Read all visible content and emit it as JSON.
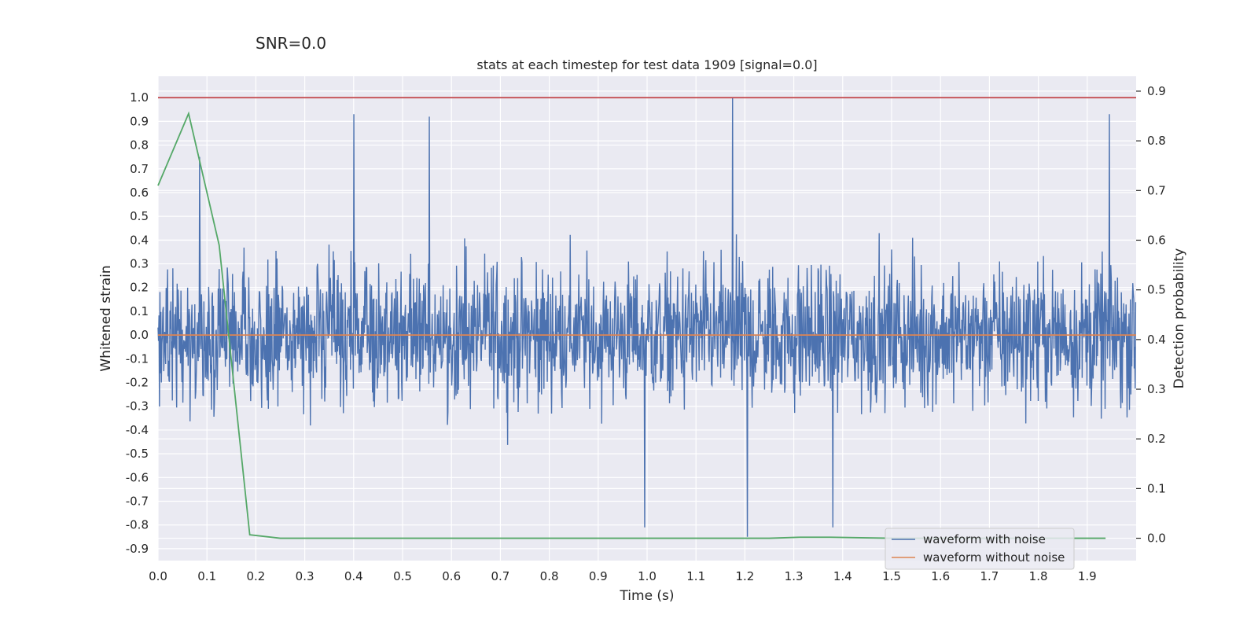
{
  "figure": {
    "suptitle": "SNR=0.0",
    "title": "stats at each timestep for test data 1909 [signal=0.0]"
  },
  "chart_data": {
    "type": "line",
    "title": "stats at each timestep for test data 1909 [signal=0.0]",
    "xlabel": "Time (s)",
    "ylabel": "Whitened strain",
    "y2label": "Detection probability",
    "xlim": [
      0.0,
      2.0
    ],
    "ylim": [
      -0.95,
      1.09
    ],
    "y2lim": [
      -0.045,
      0.93
    ],
    "xticks": [
      "0.0",
      "0.1",
      "0.2",
      "0.3",
      "0.4",
      "0.5",
      "0.6",
      "0.7",
      "0.8",
      "0.9",
      "1.0",
      "1.1",
      "1.2",
      "1.3",
      "1.4",
      "1.5",
      "1.6",
      "1.7",
      "1.8",
      "1.9"
    ],
    "yticks": [
      "1.0",
      "0.9",
      "0.8",
      "0.7",
      "0.6",
      "0.5",
      "0.4",
      "0.3",
      "0.2",
      "0.1",
      "0.0",
      "-0.1",
      "-0.2",
      "-0.3",
      "-0.4",
      "-0.5",
      "-0.6",
      "-0.7",
      "-0.8",
      "-0.9"
    ],
    "y2ticks": [
      "0.9",
      "0.8",
      "0.7",
      "0.6",
      "0.5",
      "0.4",
      "0.3",
      "0.2",
      "0.1",
      "0.0"
    ],
    "grid": true,
    "legend_position": "lower right",
    "legend": [
      "waveform with noise",
      "waveform without noise"
    ],
    "series": [
      {
        "name": "waveform with noise",
        "color": "#4c72b0",
        "axis": "left",
        "sample_count": 2048,
        "t_start": 0.0,
        "t_end": 2.0,
        "amplitude_range": [
          -0.85,
          1.0
        ],
        "notable_peaks": [
          {
            "x": 0.085,
            "y": 0.75
          },
          {
            "x": 0.4,
            "y": 0.93
          },
          {
            "x": 0.555,
            "y": 0.92
          },
          {
            "x": 1.175,
            "y": 1.0
          },
          {
            "x": 1.205,
            "y": -0.85
          },
          {
            "x": 1.945,
            "y": 0.93
          },
          {
            "x": 0.995,
            "y": -0.81
          },
          {
            "x": 1.38,
            "y": -0.81
          }
        ]
      },
      {
        "name": "waveform without noise",
        "color": "#dd8452",
        "axis": "left",
        "x": [
          0.0,
          2.0
        ],
        "y": [
          0.0,
          0.0
        ]
      },
      {
        "color": "#55a868",
        "axis": "right",
        "x": [
          0.0,
          0.0625,
          0.125,
          0.1875,
          0.25,
          0.3125,
          0.375,
          0.4375,
          0.5,
          0.5625,
          0.625,
          0.6875,
          0.75,
          0.8125,
          0.875,
          0.9375,
          1.0,
          1.0625,
          1.125,
          1.1875,
          1.25,
          1.3125,
          1.375,
          1.4375,
          1.5,
          1.5625,
          1.625,
          1.6875,
          1.75,
          1.8125,
          1.875,
          1.9375
        ],
        "y": [
          0.71,
          0.855,
          0.59,
          0.007,
          0.0,
          0.0,
          0.0,
          0.0,
          0.0,
          0.0,
          0.0,
          0.0,
          0.0,
          0.0,
          0.0,
          0.0,
          0.0,
          0.0,
          0.0,
          0.0,
          0.0,
          0.002,
          0.002,
          0.001,
          0.0,
          0.0,
          0.0,
          0.0,
          0.0,
          0.0,
          0.0,
          0.0
        ]
      },
      {
        "color": "#c44e52",
        "axis": "left",
        "x": [
          0.0,
          2.0
        ],
        "y": [
          1.0,
          1.0
        ]
      }
    ]
  }
}
